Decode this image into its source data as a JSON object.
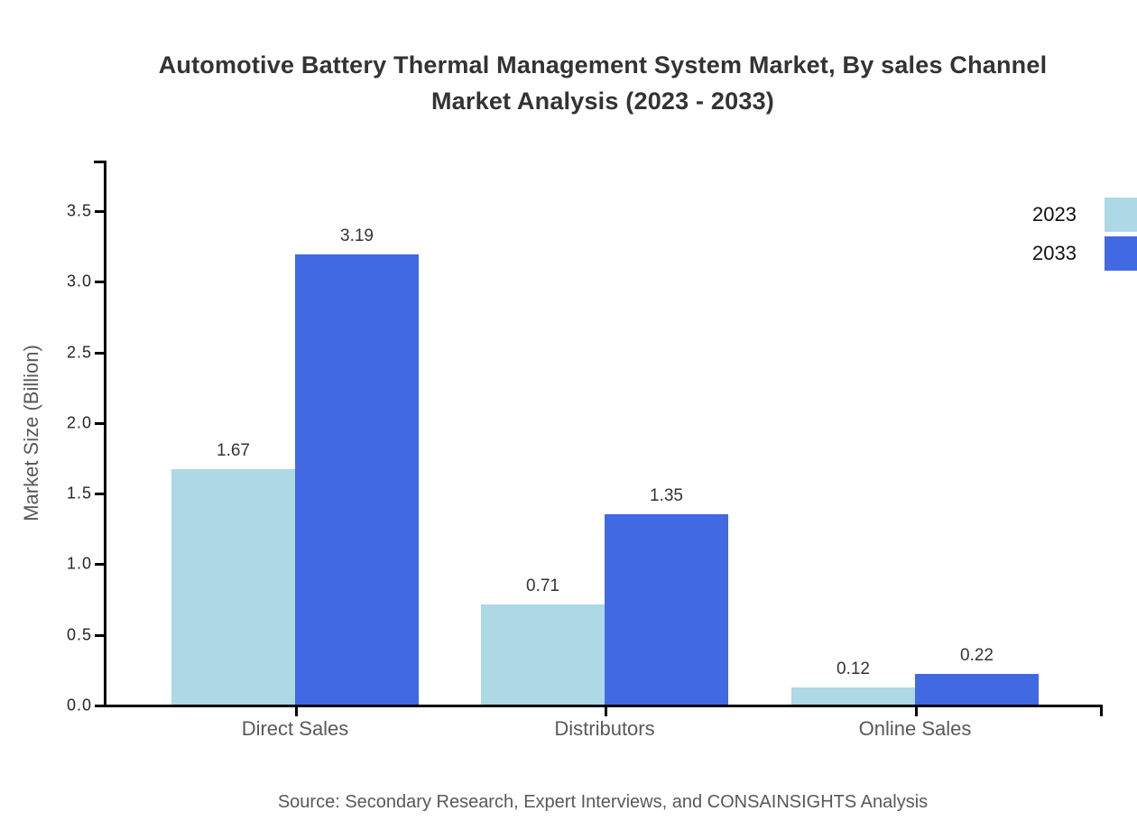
{
  "title": {
    "line1": "Automotive Battery Thermal Management System Market, By sales Channel",
    "line2": "Market Analysis (2023 - 2033)"
  },
  "source": "Source: Secondary Research, Expert Interviews, and CONSAINSIGHTS Analysis",
  "colors": {
    "series_2023": "#ADD8E6",
    "series_2033": "#4169E1",
    "axis": "#000000",
    "tick_text": "#262626",
    "muted_text": "#595959",
    "value_text": "#333333",
    "title_text": "#333333",
    "background": "#ffffff"
  },
  "chart_data": {
    "type": "bar",
    "title": "Automotive Battery Thermal Management System Market, By sales Channel Market Analysis (2023 - 2033)",
    "categories": [
      "Direct Sales",
      "Distributors",
      "Online Sales"
    ],
    "series": [
      {
        "name": "2023",
        "color": "#ADD8E6",
        "values": [
          1.67,
          0.71,
          0.12
        ],
        "labels": [
          "1.67",
          "0.71",
          "0.12"
        ]
      },
      {
        "name": "2033",
        "color": "#4169E1",
        "values": [
          3.19,
          1.35,
          0.22
        ],
        "labels": [
          "3.19",
          "1.35",
          "0.22"
        ]
      }
    ],
    "xlabel": "",
    "ylabel": "Market Size (Billion)",
    "ytick_labels": [
      "0.0",
      "0.5",
      "1.0",
      "1.5",
      "2.0",
      "2.5",
      "3.0",
      "3.5"
    ],
    "ylim": [
      0,
      3.85
    ],
    "grid": false,
    "legend_position": "top-right",
    "value_labels_shown": true
  }
}
